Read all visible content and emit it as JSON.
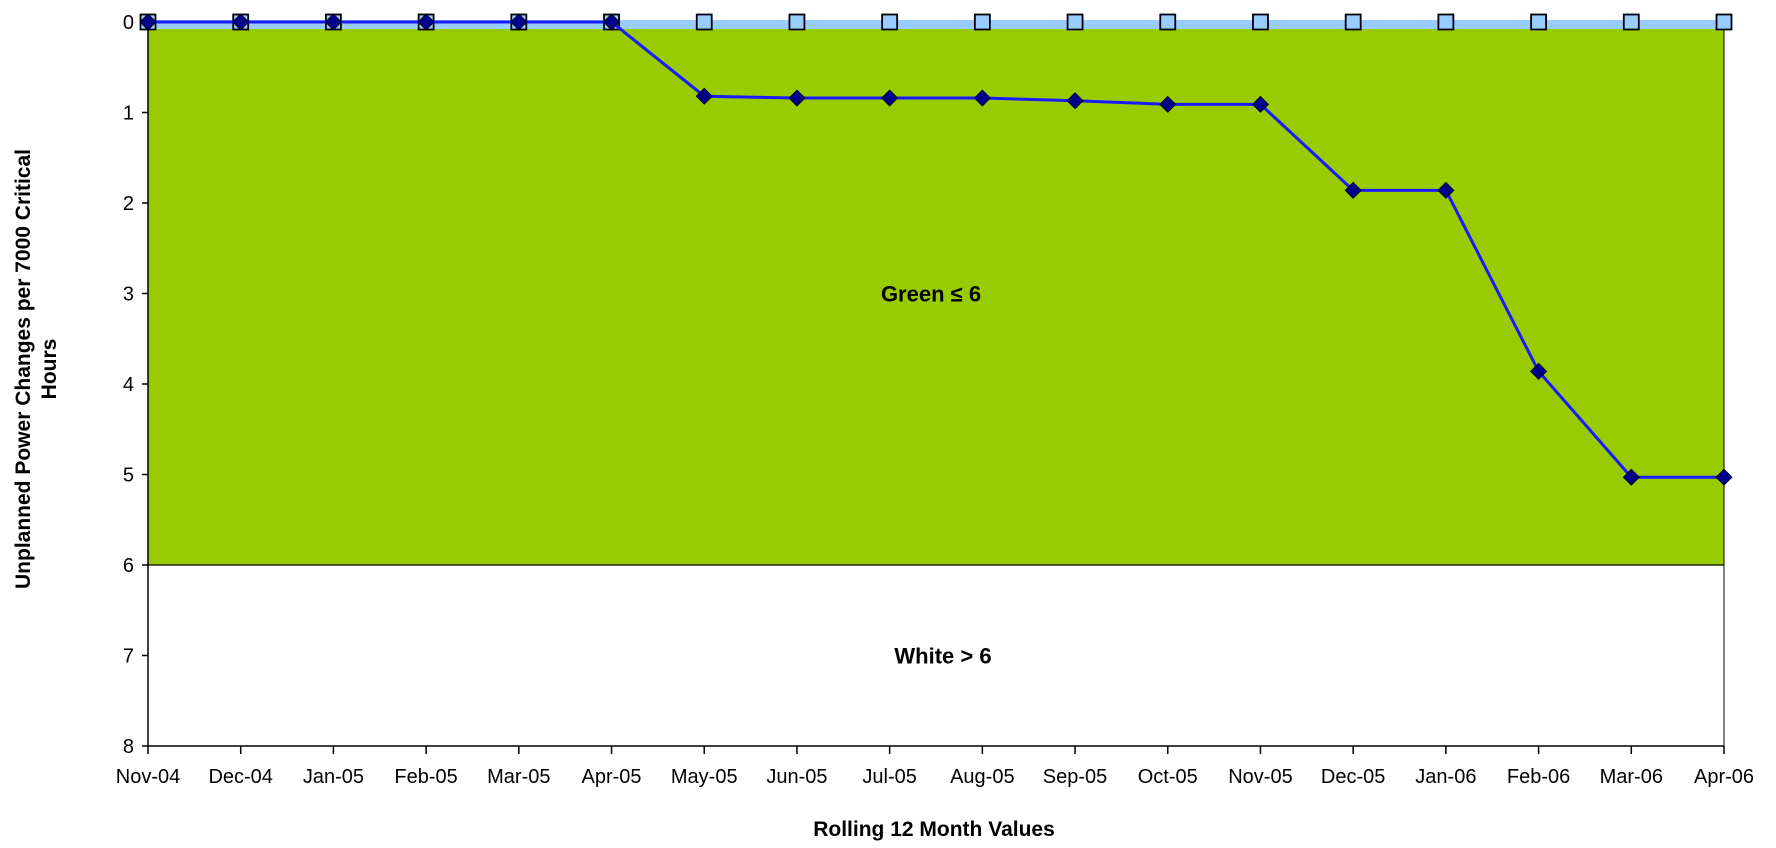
{
  "chart_data": {
    "type": "line",
    "title": "",
    "xlabel": "Rolling 12 Month Values",
    "ylabel": "Unplanned Power Changes per 7000 Critical Hours",
    "ylim": [
      0,
      8
    ],
    "y_axis_reversed": true,
    "y_ticks": [
      "0",
      "1",
      "2",
      "3",
      "4",
      "5",
      "6",
      "7",
      "8"
    ],
    "categories": [
      "Nov-04",
      "Dec-04",
      "Jan-05",
      "Feb-05",
      "Mar-05",
      "Apr-05",
      "May-05",
      "Jun-05",
      "Jul-05",
      "Aug-05",
      "Sep-05",
      "Oct-05",
      "Nov-05",
      "Dec-05",
      "Jan-06",
      "Feb-06",
      "Mar-06",
      "Apr-06"
    ],
    "series": [
      {
        "marker": "diamond",
        "color": "#1a1aff",
        "marker_color": "#00008b",
        "values": [
          0,
          0,
          0,
          0,
          0,
          0,
          0.82,
          0.84,
          0.84,
          0.84,
          0.87,
          0.91,
          0.91,
          1.86,
          1.86,
          3.86,
          5.03,
          5.03
        ]
      },
      {
        "marker": "square",
        "color": "#99ccff",
        "values": [
          0,
          0,
          0,
          0,
          0,
          0,
          0,
          0,
          0,
          0,
          0,
          0,
          0,
          0,
          0,
          0,
          0,
          0
        ]
      }
    ],
    "zones": [
      {
        "label": "Green ≤ 6",
        "from": 0,
        "to": 6,
        "color": "#99cc00"
      },
      {
        "label": "White > 6",
        "from": 6,
        "to": 8,
        "color": "#ffffff"
      }
    ],
    "grid": false,
    "legend": "none"
  }
}
